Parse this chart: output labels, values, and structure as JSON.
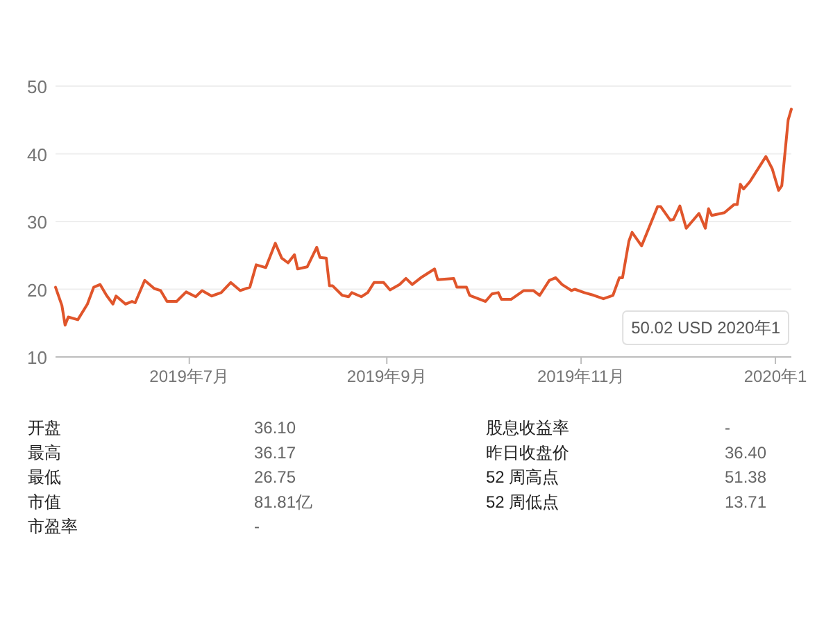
{
  "chart_data": [
    {
      "type": "line",
      "x": [
        "2019-05-20",
        "2019-05-22",
        "2019-05-23",
        "2019-05-24",
        "2019-05-27",
        "2019-05-30",
        "2019-06-01",
        "2019-06-03",
        "2019-06-05",
        "2019-06-07",
        "2019-06-08",
        "2019-06-11",
        "2019-06-13",
        "2019-06-14",
        "2019-06-17",
        "2019-06-20",
        "2019-06-22",
        "2019-06-24",
        "2019-06-27",
        "2019-06-30",
        "2019-07-03",
        "2019-07-05",
        "2019-07-08",
        "2019-07-11",
        "2019-07-14",
        "2019-07-17",
        "2019-07-20",
        "2019-07-22",
        "2019-07-25",
        "2019-07-28",
        "2019-07-30",
        "2019-08-01",
        "2019-08-03",
        "2019-08-04",
        "2019-08-07",
        "2019-08-10",
        "2019-08-11",
        "2019-08-13",
        "2019-08-14",
        "2019-08-15",
        "2019-08-18",
        "2019-08-20",
        "2019-08-21",
        "2019-08-24",
        "2019-08-26",
        "2019-08-28",
        "2019-08-31",
        "2019-09-02",
        "2019-09-05",
        "2019-09-07",
        "2019-09-09",
        "2019-09-12",
        "2019-09-16",
        "2019-09-17",
        "2019-09-22",
        "2019-09-23",
        "2019-09-26",
        "2019-09-27",
        "2019-10-02",
        "2019-10-04",
        "2019-10-06",
        "2019-10-07",
        "2019-10-10",
        "2019-10-14",
        "2019-10-17",
        "2019-10-19",
        "2019-10-22",
        "2019-10-24",
        "2019-10-26",
        "2019-10-29",
        "2019-10-30",
        "2019-11-02",
        "2019-11-05",
        "2019-11-08",
        "2019-11-11",
        "2019-11-13",
        "2019-11-14",
        "2019-11-16",
        "2019-11-17",
        "2019-11-20",
        "2019-11-25",
        "2019-11-26",
        "2019-11-29",
        "2019-11-30",
        "2019-12-02",
        "2019-12-04",
        "2019-12-08",
        "2019-12-10",
        "2019-12-11",
        "2019-12-12",
        "2019-12-16",
        "2019-12-19",
        "2019-12-20",
        "2019-12-21",
        "2019-12-22",
        "2019-12-24",
        "2019-12-29",
        "2019-12-31",
        "2020-01-02",
        "2020-01-03",
        "2020-01-05",
        "2020-01-06"
      ],
      "series": [
        {
          "color": "#e0552b",
          "values": [
            20.3,
            17.6,
            14.7,
            15.9,
            15.5,
            17.8,
            20.3,
            20.7,
            19.1,
            17.8,
            19.0,
            17.8,
            18.2,
            18.0,
            21.3,
            20.1,
            19.8,
            18.2,
            18.2,
            19.6,
            18.9,
            19.8,
            19.0,
            19.5,
            21.0,
            19.8,
            20.3,
            23.6,
            23.2,
            26.8,
            24.6,
            23.9,
            25.1,
            23.0,
            23.3,
            26.2,
            24.7,
            24.6,
            20.5,
            20.5,
            19.1,
            18.9,
            19.5,
            18.9,
            19.5,
            21.0,
            21.0,
            19.9,
            20.7,
            21.6,
            20.7,
            21.8,
            23.0,
            21.4,
            21.6,
            20.3,
            20.3,
            19.1,
            18.2,
            19.3,
            19.5,
            18.5,
            18.5,
            19.8,
            19.8,
            19.1,
            21.3,
            21.7,
            20.7,
            19.8,
            20.0,
            19.5,
            19.1,
            18.6,
            19.1,
            21.7,
            21.7,
            27.1,
            28.4,
            26.4,
            32.2,
            32.2,
            30.2,
            30.3,
            32.3,
            29.0,
            31.2,
            29.0,
            31.9,
            30.9,
            31.3,
            32.5,
            32.5,
            35.5,
            34.8,
            35.9,
            39.6,
            37.8,
            34.6,
            35.3,
            45.0,
            46.6
          ]
        }
      ],
      "xlim": [
        "2019-05-20",
        "2020-01-06"
      ],
      "xticks": [
        {
          "value": "2019-07-01",
          "label": "2019年7月"
        },
        {
          "value": "2019-09-01",
          "label": "2019年9月"
        },
        {
          "value": "2019-11-01",
          "label": "2019年11月"
        },
        {
          "value": "2020-01-01",
          "label": "2020年1"
        }
      ],
      "ylim": [
        10,
        50
      ],
      "yticks": [
        10,
        20,
        30,
        40,
        50
      ],
      "grid": "y",
      "annotations": [
        "50.02 USD  2020年1"
      ]
    },
    {
      "type": "other",
      "annotations": [
        "开盘",
        "36.10",
        "股息收益率",
        "-",
        "最高",
        "36.17",
        "昨日收盘价",
        "36.40",
        "最低",
        "26.75",
        "52 周高点",
        "51.38",
        "市值",
        "81.81亿",
        "52 周低点",
        "13.71",
        "市盈率",
        "-"
      ]
    }
  ]
}
